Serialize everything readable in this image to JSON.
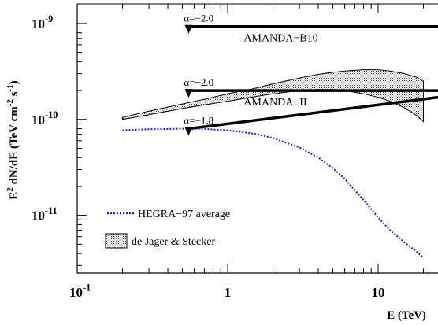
{
  "chart_data": {
    "type": "line",
    "xscale": "log",
    "yscale": "log",
    "xlim": [
      0.1,
      25
    ],
    "ylim": [
      2.5e-12,
      1.6e-09
    ],
    "xlabel": "E (TeV)",
    "ylabel": {
      "parts": [
        "E",
        "2",
        " dN/dE (TeV cm",
        "-2",
        " s",
        "-1",
        ")"
      ]
    },
    "xticks": [
      {
        "value": 0.1,
        "base": "10",
        "exp": "-1"
      },
      {
        "value": 1,
        "base": "1",
        "exp": ""
      },
      {
        "value": 10,
        "base": "10",
        "exp": ""
      }
    ],
    "yticks": [
      {
        "value": 1e-09,
        "base": "10",
        "exp": "-9"
      },
      {
        "value": 1e-10,
        "base": "10",
        "exp": "-10"
      },
      {
        "value": 1e-11,
        "base": "10",
        "exp": "-11"
      }
    ],
    "limits": [
      {
        "label": "AMANDA−B10",
        "alpha_label": "α=−2.0",
        "emin": 0.55,
        "emax": 25,
        "y_start": 9.3e-10,
        "y_end": 9.3e-10
      },
      {
        "label": "AMANDA−II",
        "alpha_label": "α=−2.0",
        "emin": 0.55,
        "emax": 25,
        "y_start": 2e-10,
        "y_end": 2e-10
      },
      {
        "label": "",
        "alpha_label": "α=−1.8",
        "emin": 0.55,
        "emax": 25,
        "y_start": 8e-11,
        "y_end": 1.7e-10
      }
    ],
    "hegra": {
      "name": "HEGRA−97 average",
      "color": "#1a1acc",
      "x": [
        0.2,
        0.3,
        0.5,
        0.7,
        1.0,
        1.5,
        2.0,
        3.0,
        4.0,
        5.0,
        6.0,
        8.0,
        10.0,
        12.0,
        15.0,
        18.0,
        20.0
      ],
      "y": [
        7.7e-11,
        7.9e-11,
        8e-11,
        7.95e-11,
        7.7e-11,
        7.1e-11,
        6.4e-11,
        5.1e-11,
        4e-11,
        3.1e-11,
        2.4e-11,
        1.45e-11,
        9.5e-12,
        7e-12,
        5.2e-12,
        4.2e-12,
        3.6e-12
      ]
    },
    "band": {
      "name": "de Jager & Stecker",
      "x": [
        0.2,
        0.3,
        0.5,
        0.7,
        1.0,
        1.5,
        2.0,
        3.0,
        4.0,
        5.0,
        6.0,
        8.0,
        10.0,
        12.0,
        15.0,
        18.0,
        20.0
      ],
      "upper": [
        1.05e-10,
        1.22e-10,
        1.45e-10,
        1.62e-10,
        1.85e-10,
        2.1e-10,
        2.35e-10,
        2.7e-10,
        2.95e-10,
        3.1e-10,
        3.2e-10,
        3.3e-10,
        3.3e-10,
        3.2e-10,
        3e-10,
        2.75e-10,
        2.5e-10
      ],
      "lower": [
        1e-10,
        1.12e-10,
        1.3e-10,
        1.42e-10,
        1.55e-10,
        1.72e-10,
        1.85e-10,
        2e-10,
        2.05e-10,
        2.05e-10,
        2e-10,
        1.85e-10,
        1.7e-10,
        1.55e-10,
        1.32e-10,
        1.1e-10,
        9.5e-11
      ]
    }
  }
}
